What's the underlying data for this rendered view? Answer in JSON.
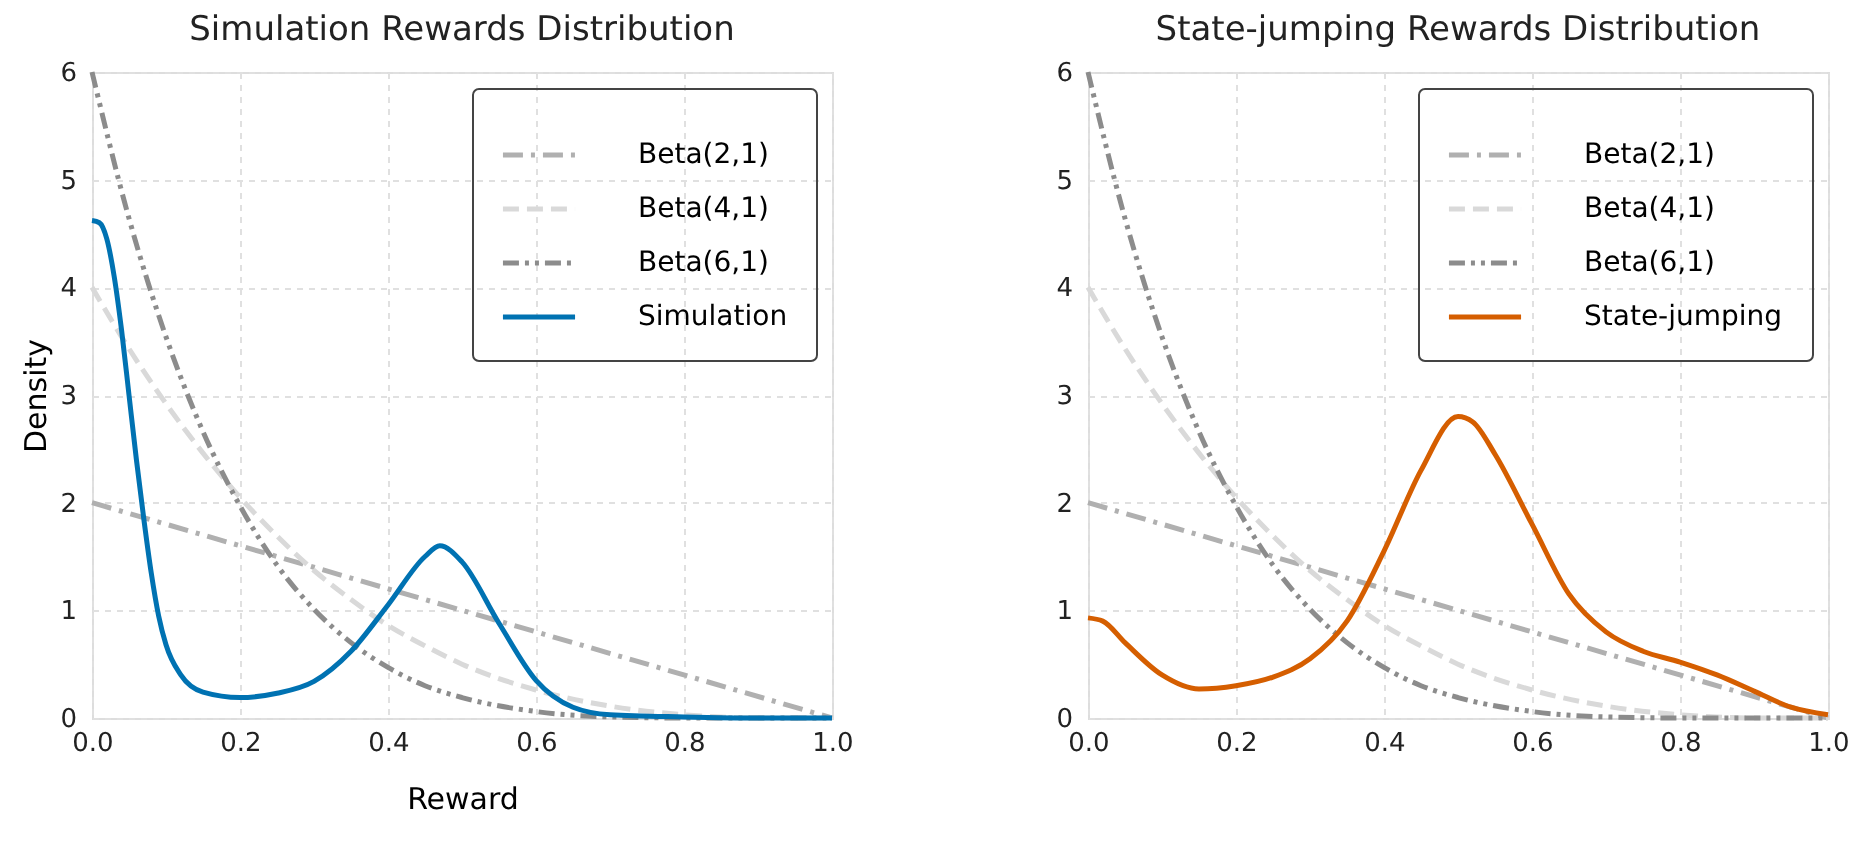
{
  "chart_data": [
    {
      "type": "line",
      "title": "Simulation Rewards Distribution",
      "xlabel": "Reward",
      "ylabel": "Density",
      "xlim": [
        0,
        1
      ],
      "ylim": [
        0,
        6
      ],
      "xticks": [
        {
          "value": 0,
          "label": "0.0"
        },
        {
          "value": 0.2,
          "label": "0.2"
        },
        {
          "value": 0.4,
          "label": "0.4"
        },
        {
          "value": 0.6,
          "label": "0.6"
        },
        {
          "value": 0.8,
          "label": "0.8"
        },
        {
          "value": 1,
          "label": "1.0"
        }
      ],
      "yticks": [
        0,
        1,
        2,
        3,
        4,
        5,
        6
      ],
      "grid": true,
      "legend": "top right",
      "series": [
        {
          "name": "Beta(2,1)",
          "color": "#b0b0b0",
          "line_style": "dashdot",
          "x": [
            0,
            1
          ],
          "values": [
            2,
            0
          ]
        },
        {
          "name": "Beta(4,1)",
          "color": "#d9d9d9",
          "line_style": "dashed",
          "x": [
            0,
            0.05,
            0.1,
            0.15,
            0.2,
            0.25,
            0.3,
            0.35,
            0.4,
            0.45,
            0.5,
            0.6,
            0.7,
            0.8,
            0.9,
            1.0
          ],
          "values": [
            4,
            3.43,
            2.92,
            2.46,
            2.05,
            1.69,
            1.37,
            1.1,
            0.86,
            0.67,
            0.5,
            0.26,
            0.11,
            0.03,
            0.0,
            0
          ]
        },
        {
          "name": "Beta(6,1)",
          "color": "#8c8c8c",
          "line_style": "dashdotdot",
          "x": [
            0,
            0.05,
            0.1,
            0.15,
            0.2,
            0.25,
            0.3,
            0.35,
            0.4,
            0.45,
            0.5,
            0.6,
            0.7,
            0.8,
            0.9,
            1.0
          ],
          "values": [
            6,
            4.64,
            3.54,
            2.66,
            1.97,
            1.42,
            1.01,
            0.7,
            0.47,
            0.3,
            0.19,
            0.06,
            0.01,
            0.0,
            0,
            0
          ]
        },
        {
          "name": "Simulation",
          "color": "#0072b2",
          "line_style": "solid",
          "x": [
            0,
            0.01,
            0.02,
            0.03,
            0.04,
            0.05,
            0.06,
            0.07,
            0.08,
            0.09,
            0.1,
            0.12,
            0.15,
            0.2,
            0.25,
            0.3,
            0.35,
            0.4,
            0.45,
            0.47,
            0.5,
            0.55,
            0.6,
            0.65,
            0.7,
            0.8,
            0.9,
            1.0
          ],
          "values": [
            4.62,
            4.6,
            4.45,
            4.1,
            3.6,
            3.0,
            2.4,
            1.85,
            1.35,
            0.95,
            0.68,
            0.4,
            0.24,
            0.19,
            0.23,
            0.34,
            0.62,
            1.05,
            1.5,
            1.6,
            1.45,
            0.88,
            0.35,
            0.1,
            0.03,
            0.01,
            0.0,
            0.0
          ]
        }
      ]
    },
    {
      "type": "line",
      "title": "State-jumping Rewards Distribution",
      "xlim": [
        0,
        1
      ],
      "ylim": [
        0,
        6
      ],
      "xticks": [
        {
          "value": 0,
          "label": "0.0"
        },
        {
          "value": 0.2,
          "label": "0.2"
        },
        {
          "value": 0.4,
          "label": "0.4"
        },
        {
          "value": 0.6,
          "label": "0.6"
        },
        {
          "value": 0.8,
          "label": "0.8"
        },
        {
          "value": 1,
          "label": "1.0"
        }
      ],
      "yticks": [
        0,
        1,
        2,
        3,
        4,
        5,
        6
      ],
      "grid": true,
      "legend": "top right",
      "series": [
        {
          "name": "Beta(2,1)",
          "color": "#b0b0b0",
          "line_style": "dashdot",
          "x": [
            0,
            1
          ],
          "values": [
            2,
            0
          ]
        },
        {
          "name": "Beta(4,1)",
          "color": "#d9d9d9",
          "line_style": "dashed",
          "x": [
            0,
            0.05,
            0.1,
            0.15,
            0.2,
            0.25,
            0.3,
            0.35,
            0.4,
            0.45,
            0.5,
            0.6,
            0.7,
            0.8,
            0.9,
            1.0
          ],
          "values": [
            4,
            3.43,
            2.92,
            2.46,
            2.05,
            1.69,
            1.37,
            1.1,
            0.86,
            0.67,
            0.5,
            0.26,
            0.11,
            0.03,
            0.0,
            0
          ]
        },
        {
          "name": "Beta(6,1)",
          "color": "#8c8c8c",
          "line_style": "dashdotdot",
          "x": [
            0,
            0.05,
            0.1,
            0.15,
            0.2,
            0.25,
            0.3,
            0.35,
            0.4,
            0.45,
            0.5,
            0.6,
            0.7,
            0.8,
            0.9,
            1.0
          ],
          "values": [
            6,
            4.64,
            3.54,
            2.66,
            1.97,
            1.42,
            1.01,
            0.7,
            0.47,
            0.3,
            0.19,
            0.06,
            0.01,
            0.0,
            0,
            0
          ]
        },
        {
          "name": "State-jumping",
          "color": "#d55e00",
          "line_style": "solid",
          "x": [
            0,
            0.02,
            0.05,
            0.1,
            0.15,
            0.2,
            0.25,
            0.3,
            0.35,
            0.4,
            0.45,
            0.5,
            0.52,
            0.55,
            0.6,
            0.65,
            0.7,
            0.75,
            0.8,
            0.85,
            0.9,
            0.95,
            1.0
          ],
          "values": [
            0.93,
            0.9,
            0.7,
            0.4,
            0.27,
            0.3,
            0.38,
            0.55,
            0.9,
            1.55,
            2.3,
            2.8,
            2.75,
            2.45,
            1.8,
            1.15,
            0.8,
            0.62,
            0.52,
            0.4,
            0.25,
            0.1,
            0.03
          ]
        }
      ]
    }
  ]
}
